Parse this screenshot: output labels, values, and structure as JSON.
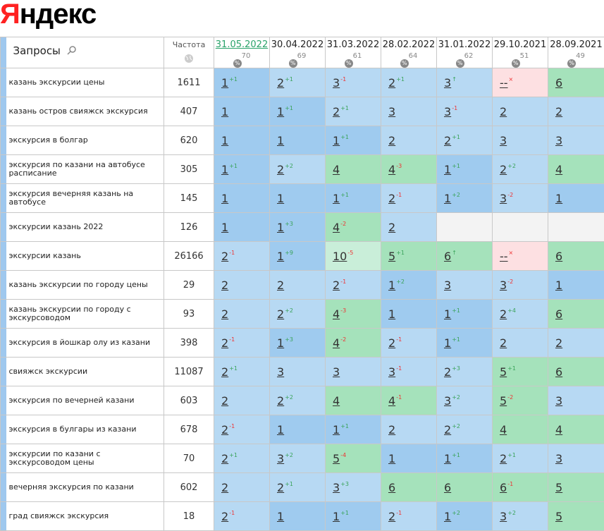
{
  "logo": "Яндекс",
  "table": {
    "headers": {
      "query": "Запросы",
      "frequency": "Частота",
      "dates": [
        {
          "date": "31.05.2022",
          "score": 70
        },
        {
          "date": "30.04.2022",
          "score": 69
        },
        {
          "date": "31.03.2022",
          "score": 61
        },
        {
          "date": "28.02.2022",
          "score": 64
        },
        {
          "date": "31.01.2022",
          "score": 62
        },
        {
          "date": "29.10.2021",
          "score": 51
        },
        {
          "date": "28.09.2021",
          "score": 49
        }
      ]
    },
    "rows": [
      {
        "query": "казань экскурсии цены",
        "frequency": 1611,
        "cells": [
          {
            "pos": "1",
            "delta": "+1"
          },
          {
            "pos": "2",
            "delta": "+1"
          },
          {
            "pos": "3",
            "delta": "-1"
          },
          {
            "pos": "2",
            "delta": "+1"
          },
          {
            "pos": "3",
            "delta": "↑"
          },
          {
            "pos": "--",
            "delta": "×"
          },
          {
            "pos": "6"
          }
        ]
      },
      {
        "query": "казань остров свияжск экскурсия",
        "frequency": 407,
        "cells": [
          {
            "pos": "1"
          },
          {
            "pos": "1",
            "delta": "+1"
          },
          {
            "pos": "2",
            "delta": "+1"
          },
          {
            "pos": "3"
          },
          {
            "pos": "3",
            "delta": "-1"
          },
          {
            "pos": "2"
          },
          {
            "pos": "2"
          }
        ]
      },
      {
        "query": "экскурсия в болгар",
        "frequency": 620,
        "cells": [
          {
            "pos": "1"
          },
          {
            "pos": "1"
          },
          {
            "pos": "1",
            "delta": "+1"
          },
          {
            "pos": "2"
          },
          {
            "pos": "2",
            "delta": "+1"
          },
          {
            "pos": "3"
          },
          {
            "pos": "3"
          }
        ]
      },
      {
        "query": "экскурсия по казани на автобусе расписание",
        "frequency": 305,
        "cells": [
          {
            "pos": "1",
            "delta": "+1"
          },
          {
            "pos": "2",
            "delta": "+2"
          },
          {
            "pos": "4"
          },
          {
            "pos": "4",
            "delta": "-3"
          },
          {
            "pos": "1",
            "delta": "+1"
          },
          {
            "pos": "2",
            "delta": "+2"
          },
          {
            "pos": "4"
          }
        ]
      },
      {
        "query": "экскурсия вечерняя казань на автобусе",
        "frequency": 145,
        "cells": [
          {
            "pos": "1"
          },
          {
            "pos": "1"
          },
          {
            "pos": "1",
            "delta": "+1"
          },
          {
            "pos": "2",
            "delta": "-1"
          },
          {
            "pos": "1",
            "delta": "+2"
          },
          {
            "pos": "3",
            "delta": "-2"
          },
          {
            "pos": "1"
          }
        ]
      },
      {
        "query": "экскурсии казань 2022",
        "frequency": 126,
        "cells": [
          {
            "pos": "1"
          },
          {
            "pos": "1",
            "delta": "+3"
          },
          {
            "pos": "4",
            "delta": "-2"
          },
          {
            "pos": "2"
          },
          null,
          null,
          null
        ]
      },
      {
        "query": "экскурсии казань",
        "frequency": 26166,
        "cells": [
          {
            "pos": "2",
            "delta": "-1"
          },
          {
            "pos": "1",
            "delta": "+9"
          },
          {
            "pos": "10",
            "delta": "-5"
          },
          {
            "pos": "5",
            "delta": "+1"
          },
          {
            "pos": "6",
            "delta": "↑"
          },
          {
            "pos": "--",
            "delta": "×"
          },
          {
            "pos": "6"
          }
        ]
      },
      {
        "query": "казань экскурсии по городу цены",
        "frequency": 29,
        "cells": [
          {
            "pos": "2"
          },
          {
            "pos": "2"
          },
          {
            "pos": "2",
            "delta": "-1"
          },
          {
            "pos": "1",
            "delta": "+2"
          },
          {
            "pos": "3"
          },
          {
            "pos": "3",
            "delta": "-2"
          },
          {
            "pos": "1"
          }
        ]
      },
      {
        "query": "казань экскурсии по городу с экскурсоводом",
        "frequency": 93,
        "cells": [
          {
            "pos": "2"
          },
          {
            "pos": "2",
            "delta": "+2"
          },
          {
            "pos": "4",
            "delta": "-3"
          },
          {
            "pos": "1"
          },
          {
            "pos": "1",
            "delta": "+1"
          },
          {
            "pos": "2",
            "delta": "+4"
          },
          {
            "pos": "6"
          }
        ]
      },
      {
        "query": "экскурсия в йошкар олу из казани",
        "frequency": 398,
        "cells": [
          {
            "pos": "2",
            "delta": "-1"
          },
          {
            "pos": "1",
            "delta": "+3"
          },
          {
            "pos": "4",
            "delta": "-2"
          },
          {
            "pos": "2",
            "delta": "-1"
          },
          {
            "pos": "1",
            "delta": "+1"
          },
          {
            "pos": "2"
          },
          {
            "pos": "2"
          }
        ]
      },
      {
        "query": "свияжск экскурсии",
        "frequency": 11087,
        "cells": [
          {
            "pos": "2",
            "delta": "+1"
          },
          {
            "pos": "3"
          },
          {
            "pos": "3"
          },
          {
            "pos": "3",
            "delta": "-1"
          },
          {
            "pos": "2",
            "delta": "+3"
          },
          {
            "pos": "5",
            "delta": "+1"
          },
          {
            "pos": "6"
          }
        ]
      },
      {
        "query": "экскурсия по вечерней казани",
        "frequency": 603,
        "cells": [
          {
            "pos": "2"
          },
          {
            "pos": "2",
            "delta": "+2"
          },
          {
            "pos": "4"
          },
          {
            "pos": "4",
            "delta": "-1"
          },
          {
            "pos": "3",
            "delta": "+2"
          },
          {
            "pos": "5",
            "delta": "-2"
          },
          {
            "pos": "3"
          }
        ]
      },
      {
        "query": "экскурсия в булгары из казани",
        "frequency": 678,
        "cells": [
          {
            "pos": "2",
            "delta": "-1"
          },
          {
            "pos": "1"
          },
          {
            "pos": "1",
            "delta": "+1"
          },
          {
            "pos": "2"
          },
          {
            "pos": "2",
            "delta": "+2"
          },
          {
            "pos": "4"
          },
          {
            "pos": "4"
          }
        ]
      },
      {
        "query": "экскурсии по казани с экскурсоводом цены",
        "frequency": 70,
        "cells": [
          {
            "pos": "2",
            "delta": "+1"
          },
          {
            "pos": "3",
            "delta": "+2"
          },
          {
            "pos": "5",
            "delta": "-4"
          },
          {
            "pos": "1"
          },
          {
            "pos": "1",
            "delta": "+1"
          },
          {
            "pos": "2",
            "delta": "+1"
          },
          {
            "pos": "3"
          }
        ]
      },
      {
        "query": "вечерняя экскурсия по казани",
        "frequency": 602,
        "cells": [
          {
            "pos": "2"
          },
          {
            "pos": "2",
            "delta": "+1"
          },
          {
            "pos": "3",
            "delta": "+3"
          },
          {
            "pos": "6"
          },
          {
            "pos": "6"
          },
          {
            "pos": "6",
            "delta": "-1"
          },
          {
            "pos": "5"
          }
        ]
      },
      {
        "query": "град свияжск экскурсия",
        "frequency": 18,
        "cells": [
          {
            "pos": "2",
            "delta": "-1"
          },
          {
            "pos": "1"
          },
          {
            "pos": "1",
            "delta": "+1"
          },
          {
            "pos": "2",
            "delta": "-1"
          },
          {
            "pos": "1",
            "delta": "+2"
          },
          {
            "pos": "3",
            "delta": "+2"
          },
          {
            "pos": "5"
          }
        ]
      }
    ]
  }
}
